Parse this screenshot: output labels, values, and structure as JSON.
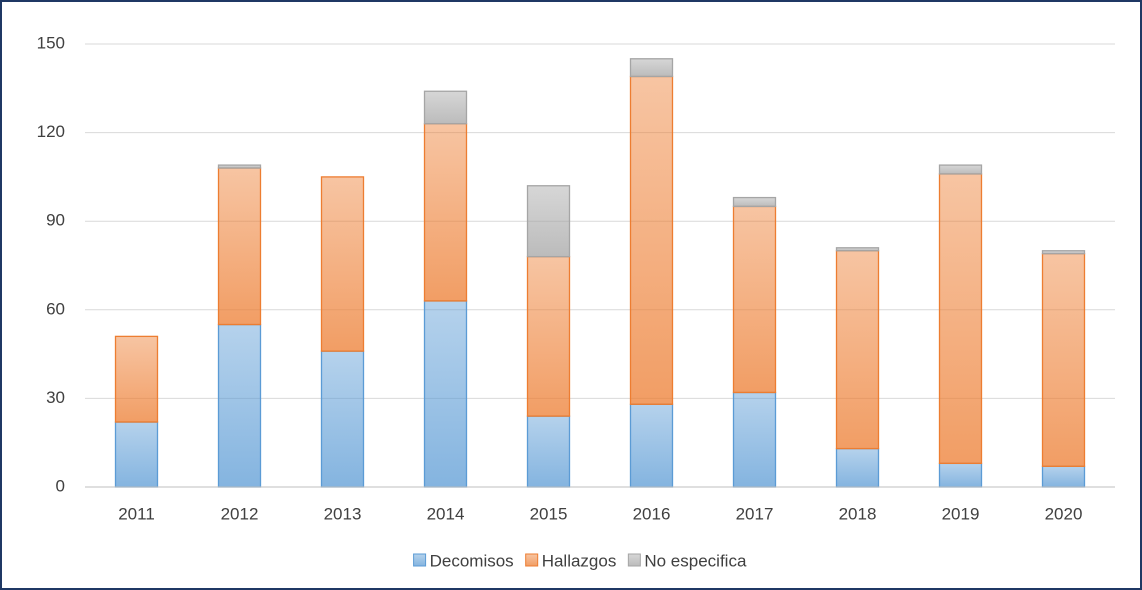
{
  "chart_data": {
    "type": "stacked_bar",
    "categories": [
      "2011",
      "2012",
      "2013",
      "2014",
      "2015",
      "2016",
      "2017",
      "2018",
      "2019",
      "2020"
    ],
    "series": [
      {
        "name": "Decomisos",
        "color": "#5b9bd5",
        "values": [
          22,
          55,
          46,
          63,
          24,
          28,
          32,
          13,
          8,
          7
        ]
      },
      {
        "name": "Hallazgos",
        "color": "#ed7d31",
        "values": [
          29,
          53,
          59,
          60,
          54,
          111,
          63,
          67,
          98,
          72
        ]
      },
      {
        "name": "No especifica",
        "color": "#a5a5a5",
        "values": [
          0,
          1,
          0,
          11,
          24,
          6,
          3,
          1,
          3,
          1
        ]
      }
    ],
    "ylim": [
      0,
      150
    ],
    "yticks": [
      0,
      30,
      60,
      90,
      120,
      150
    ],
    "grid": true,
    "legend": "bottom"
  }
}
